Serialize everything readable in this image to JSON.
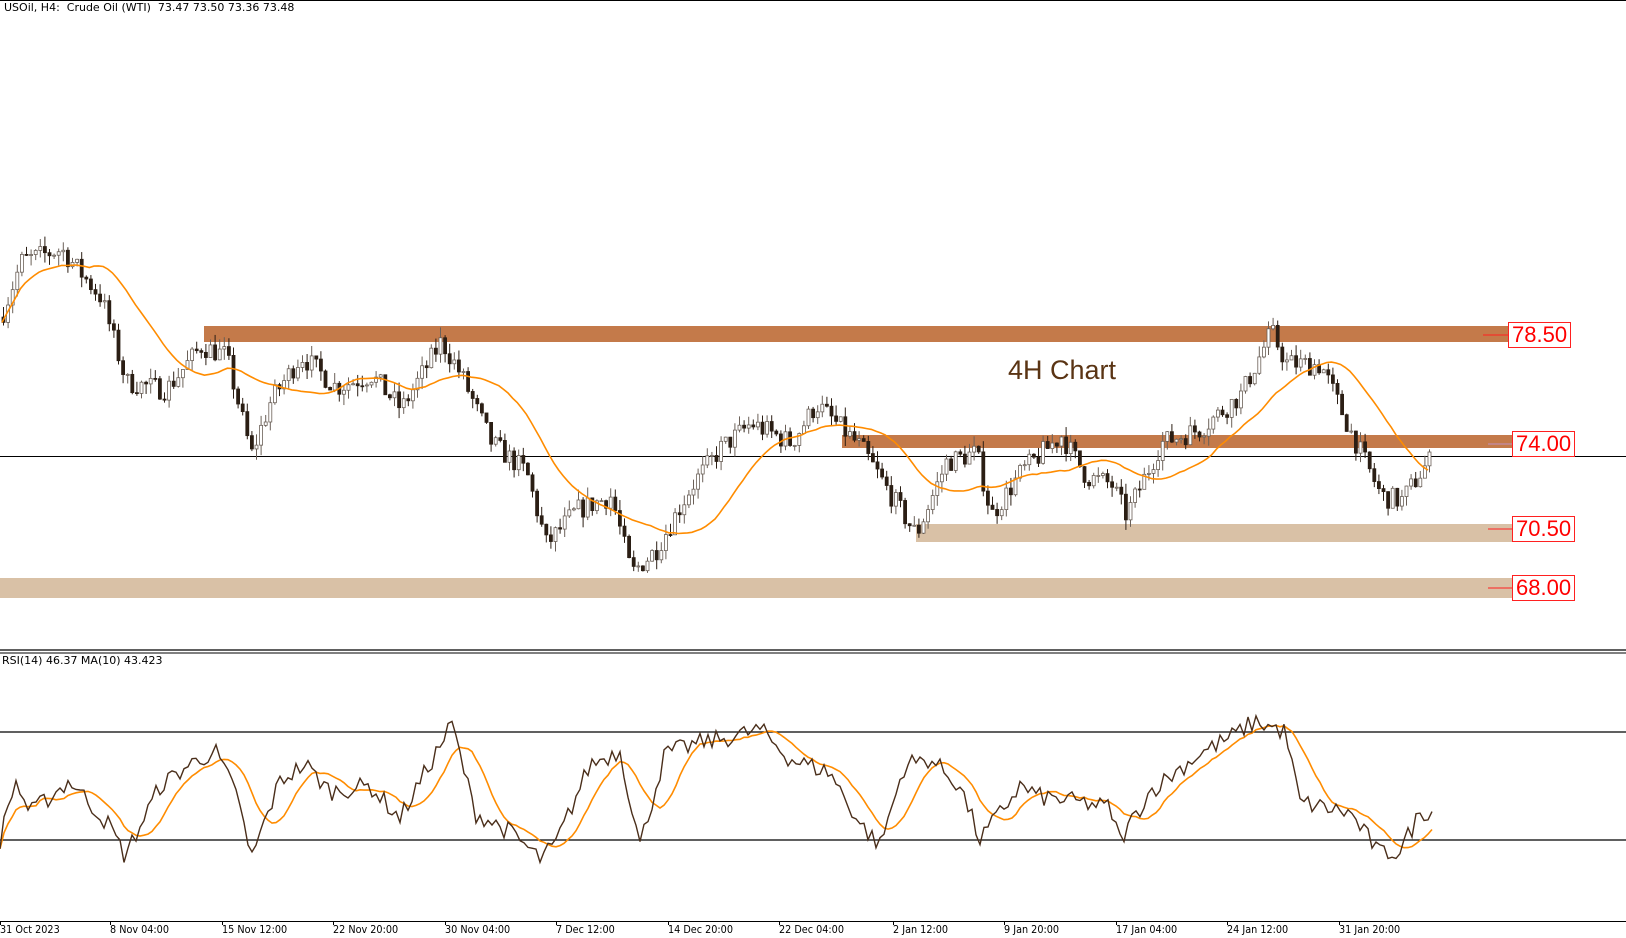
{
  "header": {
    "symbol": "USOil, H4:  Crude Oil (WTI)  73.47 73.50 73.36 73.48"
  },
  "annotation": {
    "label": "4H Chart"
  },
  "indicator": {
    "rsi_label": "RSI(14) 46.37 MA(10) 43.423"
  },
  "colors": {
    "resistance_zone": "#c47a4a",
    "support_zone": "#d9c1a6",
    "ma_line": "#ff8c00",
    "rsi_line": "#4a2e1a",
    "candle_bear": "#2b1e14",
    "candle_bull": "#ffffff",
    "price_tag": "#ff0000"
  },
  "levels": [
    {
      "label": "78.50",
      "type": "resistance"
    },
    {
      "label": "74.00",
      "type": "resistance"
    },
    {
      "label": "70.50",
      "type": "support"
    },
    {
      "label": "68.00",
      "type": "support"
    }
  ],
  "time_axis": [
    "31 Oct 2023",
    "8 Nov 04:00",
    "15 Nov 12:00",
    "22 Nov 20:00",
    "30 Nov 04:00",
    "7 Dec 12:00",
    "14 Dec 20:00",
    "22 Dec 04:00",
    "2 Jan 12:00",
    "9 Jan 20:00",
    "17 Jan 04:00",
    "24 Jan 12:00",
    "31 Jan 20:00"
  ],
  "chart_data": [
    {
      "type": "candlestick",
      "title": "USOil, H4: Crude Oil (WTI)",
      "ohlc_last": {
        "open": 73.47,
        "high": 73.5,
        "low": 73.36,
        "close": 73.48
      },
      "x": [
        "31 Oct 2023",
        "8 Nov 04:00",
        "15 Nov 12:00",
        "22 Nov 20:00",
        "30 Nov 04:00",
        "7 Dec 12:00",
        "14 Dec 20:00",
        "22 Dec 04:00",
        "2 Jan 12:00",
        "9 Jan 20:00",
        "17 Jan 04:00",
        "24 Jan 12:00",
        "31 Jan 20:00"
      ],
      "approx_close_at_ticks": [
        82.5,
        76.0,
        73.5,
        76.5,
        78.0,
        69.5,
        71.5,
        75.5,
        72.0,
        72.5,
        72.0,
        78.0,
        73.0
      ],
      "horizontal_zones": [
        {
          "level": 78.5,
          "kind": "resistance"
        },
        {
          "level": 74.0,
          "kind": "resistance"
        },
        {
          "level": 70.5,
          "kind": "support"
        },
        {
          "level": 68.0,
          "kind": "support"
        }
      ],
      "current_price": 73.48,
      "overlay": "Moving average (orange)",
      "annotation": "4H Chart",
      "grid": false
    },
    {
      "type": "line",
      "title": "RSI(14) 46.37 MA(10) 43.423",
      "series": [
        {
          "name": "RSI(14)",
          "last": 46.37
        },
        {
          "name": "MA(10)",
          "last": 43.423
        }
      ],
      "levels": [
        70,
        30
      ],
      "ylim": [
        0,
        100
      ],
      "approx_rsi_at_ticks": [
        40,
        33,
        58,
        62,
        69,
        29,
        64,
        68,
        33,
        47,
        40,
        72,
        30
      ]
    }
  ],
  "render": {
    "price_keypoints": [
      [
        0,
        79.2
      ],
      [
        20,
        81.5
      ],
      [
        60,
        82.0
      ],
      [
        100,
        80.0
      ],
      [
        125,
        76.5
      ],
      [
        165,
        76.2
      ],
      [
        200,
        78.0
      ],
      [
        225,
        77.6
      ],
      [
        250,
        73.5
      ],
      [
        270,
        75.8
      ],
      [
        300,
        77.6
      ],
      [
        335,
        76.3
      ],
      [
        370,
        76.8
      ],
      [
        400,
        75.4
      ],
      [
        440,
        78.2
      ],
      [
        460,
        76.8
      ],
      [
        490,
        74.0
      ],
      [
        525,
        72.8
      ],
      [
        545,
        69.8
      ],
      [
        575,
        71.2
      ],
      [
        610,
        71.8
      ],
      [
        630,
        68.6
      ],
      [
        655,
        69.6
      ],
      [
        690,
        72.2
      ],
      [
        720,
        73.8
      ],
      [
        750,
        74.8
      ],
      [
        790,
        74.0
      ],
      [
        815,
        75.6
      ],
      [
        860,
        73.8
      ],
      [
        890,
        71.8
      ],
      [
        915,
        70.2
      ],
      [
        945,
        73.2
      ],
      [
        975,
        73.6
      ],
      [
        990,
        71.0
      ],
      [
        1020,
        72.8
      ],
      [
        1060,
        74.3
      ],
      [
        1085,
        72.6
      ],
      [
        1110,
        72.3
      ],
      [
        1125,
        71.0
      ],
      [
        1160,
        74.0
      ],
      [
        1200,
        74.6
      ],
      [
        1240,
        76.0
      ],
      [
        1270,
        78.6
      ],
      [
        1285,
        77.3
      ],
      [
        1320,
        77.2
      ],
      [
        1350,
        74.4
      ],
      [
        1380,
        71.8
      ],
      [
        1400,
        71.6
      ],
      [
        1420,
        72.8
      ],
      [
        1432,
        73.48
      ]
    ],
    "rsi_keypoints": [
      [
        0,
        30
      ],
      [
        15,
        52
      ],
      [
        30,
        40
      ],
      [
        70,
        52
      ],
      [
        110,
        35
      ],
      [
        125,
        24
      ],
      [
        160,
        50
      ],
      [
        190,
        58
      ],
      [
        215,
        63
      ],
      [
        240,
        44
      ],
      [
        250,
        22
      ],
      [
        280,
        52
      ],
      [
        305,
        58
      ],
      [
        330,
        48
      ],
      [
        370,
        50
      ],
      [
        400,
        38
      ],
      [
        452,
        73
      ],
      [
        475,
        40
      ],
      [
        510,
        33
      ],
      [
        540,
        23
      ],
      [
        555,
        28
      ],
      [
        590,
        58
      ],
      [
        620,
        63
      ],
      [
        640,
        28
      ],
      [
        665,
        62
      ],
      [
        700,
        66
      ],
      [
        730,
        68
      ],
      [
        760,
        71
      ],
      [
        790,
        60
      ],
      [
        830,
        55
      ],
      [
        860,
        36
      ],
      [
        880,
        28
      ],
      [
        905,
        58
      ],
      [
        930,
        60
      ],
      [
        960,
        50
      ],
      [
        980,
        30
      ],
      [
        1020,
        50
      ],
      [
        1040,
        46
      ],
      [
        1080,
        44
      ],
      [
        1110,
        42
      ],
      [
        1120,
        30
      ],
      [
        1150,
        48
      ],
      [
        1200,
        62
      ],
      [
        1230,
        68
      ],
      [
        1255,
        74
      ],
      [
        1285,
        70
      ],
      [
        1300,
        44
      ],
      [
        1350,
        40
      ],
      [
        1380,
        25
      ],
      [
        1400,
        26
      ],
      [
        1420,
        40
      ],
      [
        1432,
        41
      ]
    ]
  }
}
